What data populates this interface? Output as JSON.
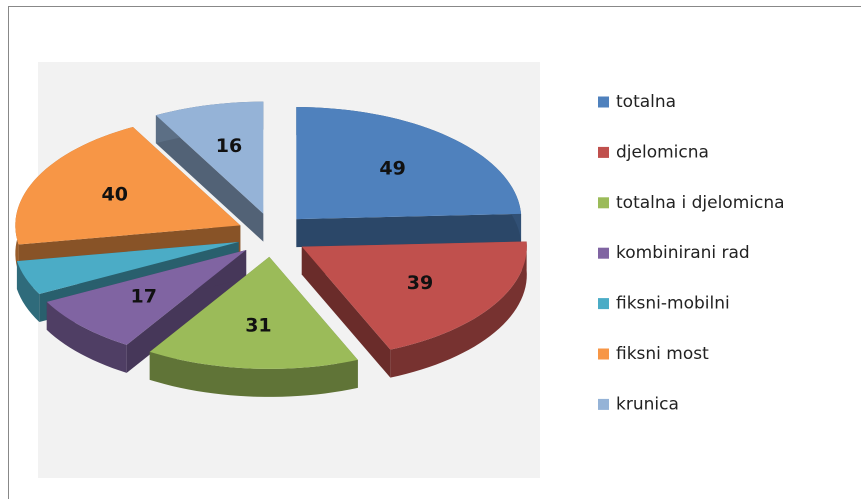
{
  "chart_data": {
    "type": "pie3d",
    "categories": [
      "totalna",
      "djelomicna",
      "totalna i djelomicna",
      "kombinirani rad",
      "fiksni-mobilni",
      "fiksni most",
      "krunica"
    ],
    "values": [
      49,
      39,
      31,
      17,
      10,
      40,
      16
    ],
    "colors": [
      "#4f81bd",
      "#c0504d",
      "#9bbb59",
      "#8064a2",
      "#4bacc6",
      "#f79646",
      "#95b3d7"
    ],
    "legend": "right"
  }
}
